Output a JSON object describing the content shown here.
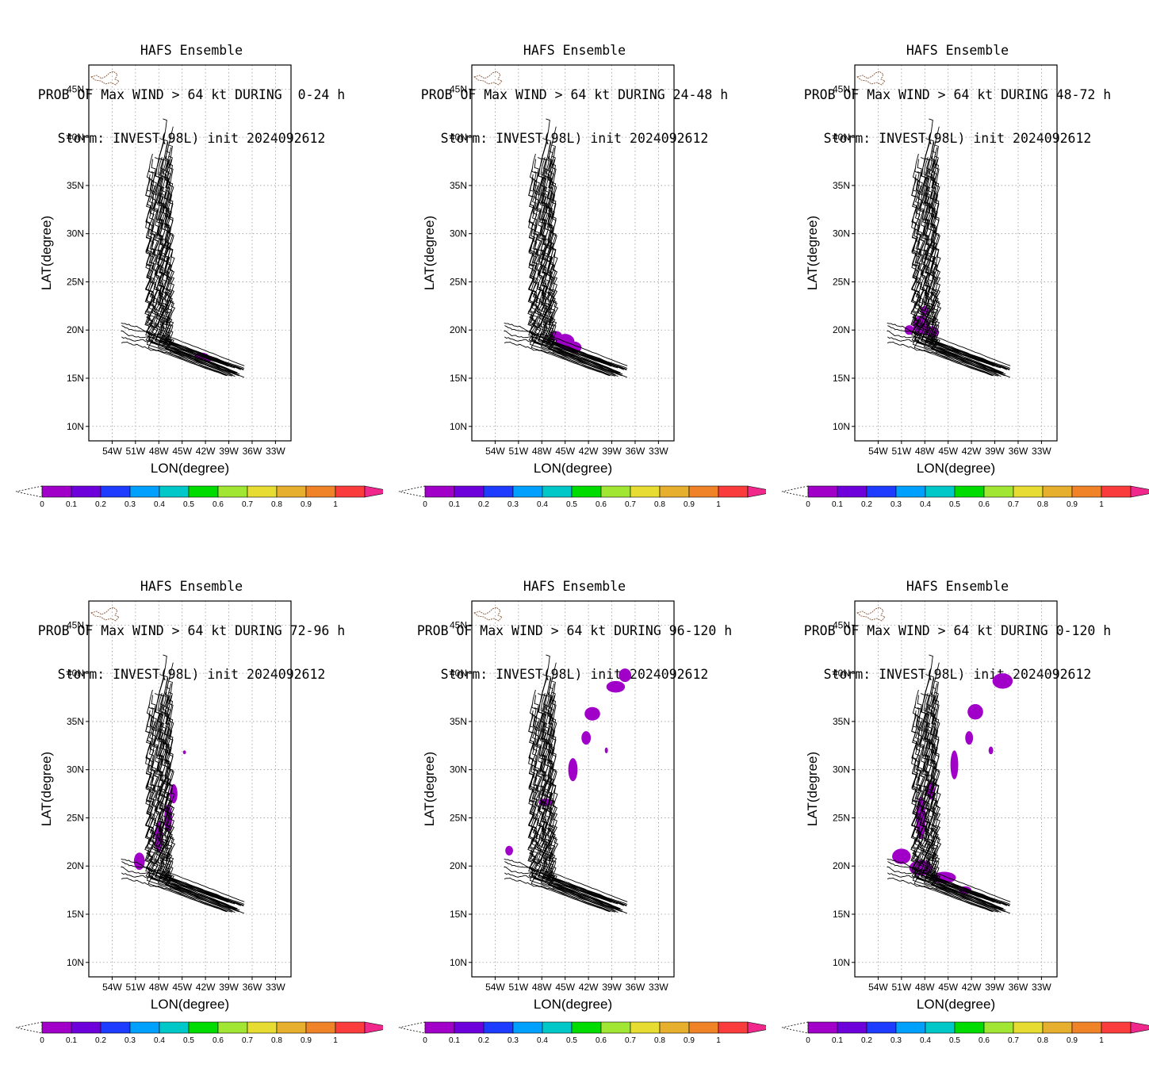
{
  "colorbar": {
    "labels": [
      "0",
      "0.1",
      "0.2",
      "0.3",
      "0.4",
      "0.5",
      "0.6",
      "0.7",
      "0.8",
      "0.9",
      "1"
    ],
    "colors": [
      "#a000c8",
      "#6e00dc",
      "#1e3cff",
      "#00a0ff",
      "#00c8c8",
      "#00dc00",
      "#a0e632",
      "#e6dc32",
      "#e6af2d",
      "#f08228",
      "#fa3c3c"
    ],
    "over_color": "#f0288c"
  },
  "axes": {
    "xlabel": "LON(degree)",
    "ylabel": "LAT(degree)",
    "lon_ticks": [
      "54W",
      "51W",
      "48W",
      "45W",
      "42W",
      "39W",
      "36W",
      "33W"
    ],
    "lat_ticks": [
      "10N",
      "15N",
      "20N",
      "25N",
      "30N",
      "35N",
      "40N",
      "45N"
    ],
    "lon_range": [
      -57,
      -31
    ],
    "lat_range": [
      8.5,
      47.5
    ]
  },
  "panels": [
    {
      "title1": "HAFS Ensemble",
      "title2": "PROB OF Max WIND > 64 kt DURING  0-24 h",
      "title3": "Storm: INVEST(98L) init 2024092612"
    },
    {
      "title1": "HAFS Ensemble",
      "title2": "PROB OF Max WIND > 64 kt DURING 24-48 h",
      "title3": "Storm: INVEST(98L) init 2024092612"
    },
    {
      "title1": "HAFS Ensemble",
      "title2": "PROB OF Max WIND > 64 kt DURING 48-72 h",
      "title3": "Storm: INVEST(98L) init 2024092612"
    },
    {
      "title1": "HAFS Ensemble",
      "title2": "PROB OF Max WIND > 64 kt DURING 72-96 h",
      "title3": "Storm: INVEST(98L) init 2024092612"
    },
    {
      "title1": "HAFS Ensemble",
      "title2": "PROB OF Max WIND > 64 kt DURING 96-120 h",
      "title3": "Storm: INVEST(98L) init 2024092612"
    },
    {
      "title1": "HAFS Ensemble",
      "title2": "PROB OF Max WIND > 64 kt DURING 0-120 h",
      "title3": "Storm: INVEST(98L) init 2024092612"
    }
  ]
}
